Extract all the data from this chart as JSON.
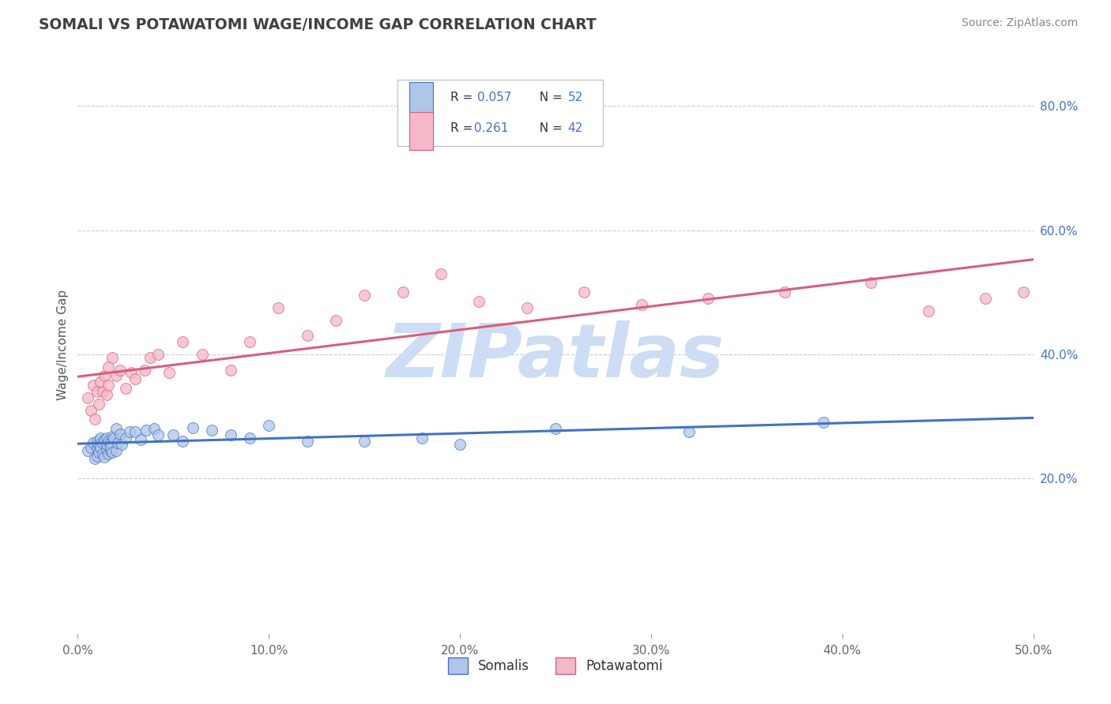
{
  "title": "SOMALI VS POTAWATOMI WAGE/INCOME GAP CORRELATION CHART",
  "source": "Source: ZipAtlas.com",
  "ylabel": "Wage/Income Gap",
  "xlim": [
    0.0,
    0.5
  ],
  "ylim": [
    -0.05,
    0.88
  ],
  "xtick_labels": [
    "0.0%",
    "10.0%",
    "20.0%",
    "30.0%",
    "40.0%",
    "50.0%"
  ],
  "xtick_vals": [
    0.0,
    0.1,
    0.2,
    0.3,
    0.4,
    0.5
  ],
  "ytick_labels": [
    "20.0%",
    "40.0%",
    "60.0%",
    "80.0%"
  ],
  "ytick_vals": [
    0.2,
    0.4,
    0.6,
    0.8
  ],
  "somali_R": 0.057,
  "somali_N": 52,
  "potawatomi_R": 0.261,
  "potawatomi_N": 42,
  "somali_color": "#aec6e8",
  "potawatomi_color": "#f4b8c8",
  "somali_line_color": "#4472c4",
  "potawatomi_line_color": "#d95f7a",
  "watermark": "ZIPatlas",
  "watermark_color": "#ccddf5",
  "background_color": "#ffffff",
  "grid_color": "#cccccc",
  "title_color": "#404040",
  "somali_x": [
    0.005,
    0.007,
    0.008,
    0.009,
    0.01,
    0.01,
    0.01,
    0.011,
    0.011,
    0.012,
    0.012,
    0.013,
    0.013,
    0.014,
    0.014,
    0.015,
    0.015,
    0.015,
    0.016,
    0.016,
    0.017,
    0.017,
    0.017,
    0.018,
    0.018,
    0.019,
    0.02,
    0.02,
    0.021,
    0.022,
    0.023,
    0.025,
    0.027,
    0.03,
    0.033,
    0.036,
    0.04,
    0.042,
    0.05,
    0.055,
    0.06,
    0.07,
    0.08,
    0.09,
    0.1,
    0.12,
    0.15,
    0.18,
    0.2,
    0.25,
    0.32,
    0.39
  ],
  "somali_y": [
    0.245,
    0.25,
    0.258,
    0.232,
    0.248,
    0.26,
    0.236,
    0.255,
    0.242,
    0.265,
    0.25,
    0.24,
    0.258,
    0.235,
    0.262,
    0.247,
    0.265,
    0.255,
    0.26,
    0.24,
    0.245,
    0.258,
    0.25,
    0.268,
    0.242,
    0.265,
    0.245,
    0.28,
    0.258,
    0.272,
    0.255,
    0.265,
    0.275,
    0.275,
    0.262,
    0.278,
    0.28,
    0.27,
    0.27,
    0.26,
    0.282,
    0.278,
    0.27,
    0.265,
    0.285,
    0.26,
    0.26,
    0.265,
    0.255,
    0.28,
    0.275,
    0.29
  ],
  "potawatomi_x": [
    0.005,
    0.007,
    0.008,
    0.009,
    0.01,
    0.011,
    0.012,
    0.013,
    0.014,
    0.015,
    0.016,
    0.016,
    0.018,
    0.02,
    0.022,
    0.025,
    0.028,
    0.03,
    0.035,
    0.038,
    0.042,
    0.048,
    0.055,
    0.065,
    0.08,
    0.09,
    0.105,
    0.12,
    0.135,
    0.15,
    0.17,
    0.19,
    0.21,
    0.235,
    0.265,
    0.295,
    0.33,
    0.37,
    0.415,
    0.445,
    0.475,
    0.495
  ],
  "potawatomi_y": [
    0.33,
    0.31,
    0.35,
    0.295,
    0.34,
    0.32,
    0.355,
    0.34,
    0.365,
    0.335,
    0.35,
    0.38,
    0.395,
    0.365,
    0.375,
    0.345,
    0.37,
    0.36,
    0.375,
    0.395,
    0.4,
    0.37,
    0.42,
    0.4,
    0.375,
    0.42,
    0.475,
    0.43,
    0.455,
    0.495,
    0.5,
    0.53,
    0.485,
    0.475,
    0.5,
    0.48,
    0.49,
    0.5,
    0.515,
    0.47,
    0.49,
    0.5
  ]
}
